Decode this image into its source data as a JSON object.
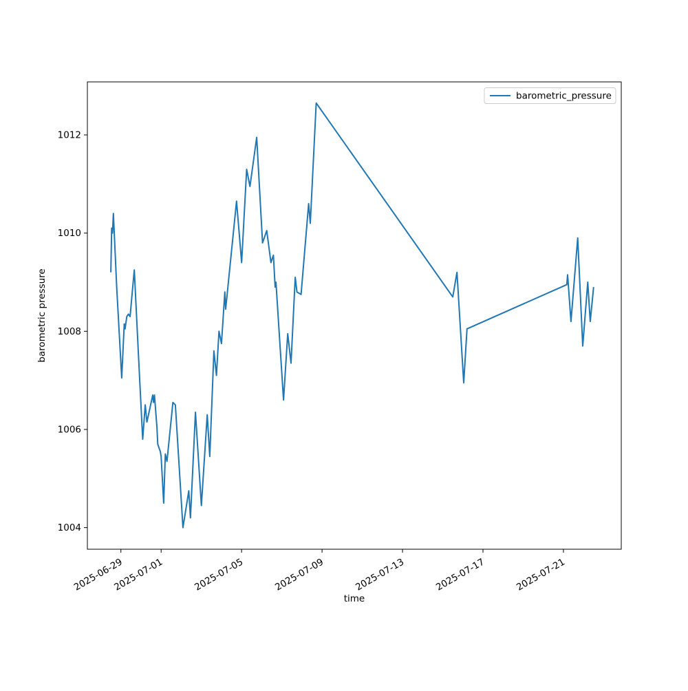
{
  "chart_data": {
    "type": "line",
    "title": "",
    "xlabel": "time",
    "ylabel": "barometric pressure",
    "grid": false,
    "legend": {
      "position": "upper right",
      "entries": [
        "barometric_pressure"
      ]
    },
    "xlim": [
      "2025-06-27T08:00",
      "2025-07-23T21:00"
    ],
    "ylim": [
      1003.56,
      1013.08
    ],
    "x_ticks": [
      {
        "label": "2025-06-29",
        "t": "2025-06-29T00:00"
      },
      {
        "label": "2025-07-01",
        "t": "2025-07-01T00:00"
      },
      {
        "label": "2025-07-05",
        "t": "2025-07-05T00:00"
      },
      {
        "label": "2025-07-09",
        "t": "2025-07-09T00:00"
      },
      {
        "label": "2025-07-13",
        "t": "2025-07-13T00:00"
      },
      {
        "label": "2025-07-17",
        "t": "2025-07-17T00:00"
      },
      {
        "label": "2025-07-21",
        "t": "2025-07-21T00:00"
      }
    ],
    "x_tick_rotation_deg": -30,
    "y_ticks": [
      {
        "label": "1004",
        "v": 1004
      },
      {
        "label": "1006",
        "v": 1006
      },
      {
        "label": "1008",
        "v": 1008
      },
      {
        "label": "1010",
        "v": 1010
      },
      {
        "label": "1012",
        "v": 1012
      }
    ],
    "series": [
      {
        "name": "barometric_pressure",
        "color": "#1f77b4",
        "points": [
          [
            "2025-06-28T12:00",
            1009.2
          ],
          [
            "2025-06-28T13:00",
            1010.1
          ],
          [
            "2025-06-28T14:00",
            1010.0
          ],
          [
            "2025-06-28T15:00",
            1010.4
          ],
          [
            "2025-06-28T19:00",
            1008.9
          ],
          [
            "2025-06-29T01:00",
            1007.05
          ],
          [
            "2025-06-29T04:00",
            1008.15
          ],
          [
            "2025-06-29T05:00",
            1008.05
          ],
          [
            "2025-06-29T07:00",
            1008.3
          ],
          [
            "2025-06-29T09:00",
            1008.35
          ],
          [
            "2025-06-29T11:00",
            1008.3
          ],
          [
            "2025-06-29T13:00",
            1008.7
          ],
          [
            "2025-06-29T16:00",
            1009.25
          ],
          [
            "2025-06-29T21:00",
            1007.5
          ],
          [
            "2025-06-30T02:00",
            1005.8
          ],
          [
            "2025-06-30T05:00",
            1006.5
          ],
          [
            "2025-06-30T07:00",
            1006.15
          ],
          [
            "2025-06-30T14:00",
            1006.7
          ],
          [
            "2025-06-30T15:00",
            1006.55
          ],
          [
            "2025-06-30T16:00",
            1006.7
          ],
          [
            "2025-06-30T19:00",
            1006.05
          ],
          [
            "2025-06-30T20:00",
            1005.7
          ],
          [
            "2025-06-30T23:00",
            1005.55
          ],
          [
            "2025-07-01T00:00",
            1005.45
          ],
          [
            "2025-07-01T03:00",
            1004.5
          ],
          [
            "2025-07-01T05:00",
            1005.5
          ],
          [
            "2025-07-01T07:00",
            1005.35
          ],
          [
            "2025-07-01T14:00",
            1006.55
          ],
          [
            "2025-07-01T17:00",
            1006.5
          ],
          [
            "2025-07-02T02:00",
            1004.0
          ],
          [
            "2025-07-02T09:00",
            1004.75
          ],
          [
            "2025-07-02T11:00",
            1004.2
          ],
          [
            "2025-07-02T17:00",
            1006.35
          ],
          [
            "2025-07-03T00:00",
            1004.45
          ],
          [
            "2025-07-03T07:00",
            1006.3
          ],
          [
            "2025-07-03T10:00",
            1005.45
          ],
          [
            "2025-07-03T15:00",
            1007.6
          ],
          [
            "2025-07-03T18:00",
            1007.1
          ],
          [
            "2025-07-03T21:00",
            1008.0
          ],
          [
            "2025-07-04T00:00",
            1007.75
          ],
          [
            "2025-07-04T04:00",
            1008.8
          ],
          [
            "2025-07-04T05:00",
            1008.45
          ],
          [
            "2025-07-04T18:00",
            1010.65
          ],
          [
            "2025-07-05T00:00",
            1009.4
          ],
          [
            "2025-07-05T06:00",
            1011.3
          ],
          [
            "2025-07-05T10:00",
            1010.95
          ],
          [
            "2025-07-05T18:00",
            1011.95
          ],
          [
            "2025-07-06T01:00",
            1009.8
          ],
          [
            "2025-07-06T06:00",
            1010.05
          ],
          [
            "2025-07-06T11:00",
            1009.4
          ],
          [
            "2025-07-06T14:00",
            1009.55
          ],
          [
            "2025-07-06T16:00",
            1008.9
          ],
          [
            "2025-07-06T17:00",
            1009.0
          ],
          [
            "2025-07-07T02:00",
            1006.6
          ],
          [
            "2025-07-07T07:00",
            1007.95
          ],
          [
            "2025-07-07T11:00",
            1007.35
          ],
          [
            "2025-07-07T16:00",
            1009.1
          ],
          [
            "2025-07-07T18:00",
            1008.8
          ],
          [
            "2025-07-07T23:00",
            1008.75
          ],
          [
            "2025-07-08T08:00",
            1010.6
          ],
          [
            "2025-07-08T10:00",
            1010.2
          ],
          [
            "2025-07-08T17:00",
            1012.65
          ],
          [
            "2025-07-15T12:00",
            1008.7
          ],
          [
            "2025-07-15T17:00",
            1009.2
          ],
          [
            "2025-07-16T01:00",
            1006.95
          ],
          [
            "2025-07-16T05:00",
            1008.05
          ],
          [
            "2025-07-21T04:00",
            1008.95
          ],
          [
            "2025-07-21T05:00",
            1009.15
          ],
          [
            "2025-07-21T09:00",
            1008.2
          ],
          [
            "2025-07-21T17:00",
            1009.9
          ],
          [
            "2025-07-21T23:00",
            1007.7
          ],
          [
            "2025-07-22T05:00",
            1009.0
          ],
          [
            "2025-07-22T08:00",
            1008.2
          ],
          [
            "2025-07-22T12:00",
            1008.9
          ]
        ]
      }
    ],
    "colors": {
      "line": "#1f77b4",
      "spine": "#000000",
      "legend_border": "#cccccc",
      "background": "#ffffff"
    }
  }
}
